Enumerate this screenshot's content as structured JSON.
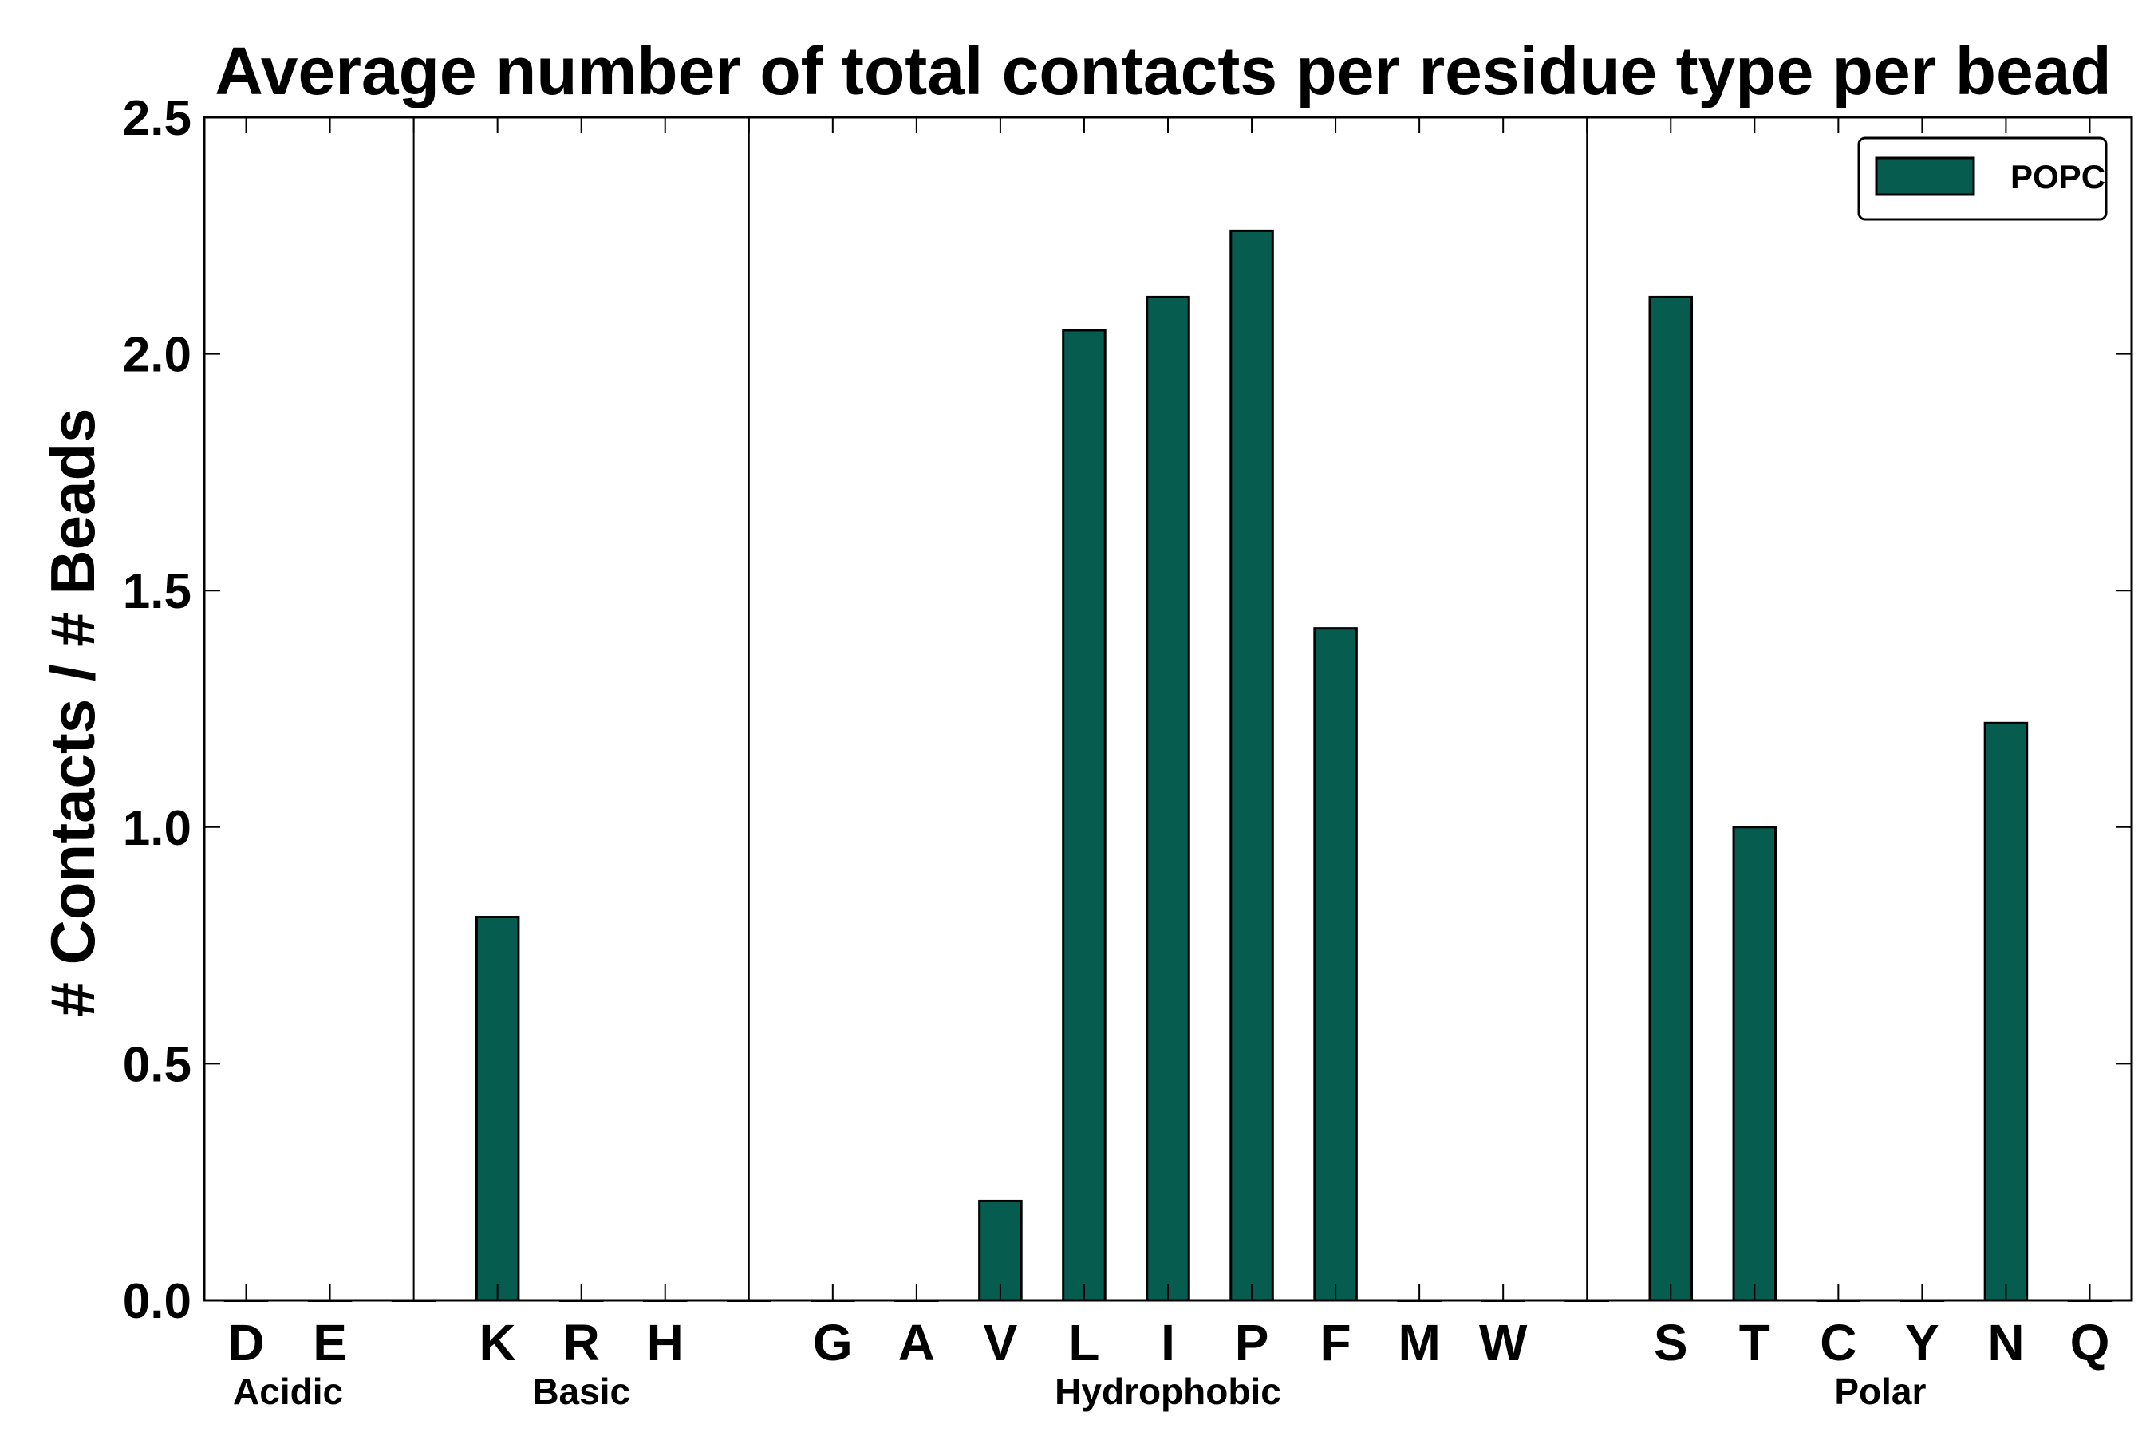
{
  "chart_data": {
    "type": "bar",
    "title": "Average number of total contacts per residue type per bead",
    "ylabel": "# Contacts / # Beads",
    "xlabel": "",
    "ylim": [
      0,
      2.5
    ],
    "yticks": [
      "0.0",
      "0.5",
      "1.0",
      "1.5",
      "2.0",
      "2.5"
    ],
    "grid": false,
    "legend_position": "top-right",
    "categories": [
      "D",
      "E",
      "",
      "K",
      "R",
      "H",
      "",
      "G",
      "A",
      "V",
      "L",
      "I",
      "P",
      "F",
      "M",
      "W",
      "",
      "S",
      "T",
      "C",
      "Y",
      "N",
      "Q"
    ],
    "series": [
      {
        "name": "POPC",
        "color": "#065c4e",
        "values": [
          0,
          0,
          0,
          0.81,
          0,
          0,
          0,
          0,
          0,
          0.21,
          2.05,
          2.12,
          2.26,
          1.42,
          0,
          0,
          0,
          2.12,
          1.0,
          0,
          0,
          1.22,
          0
        ]
      }
    ],
    "groups": [
      {
        "label": "Acidic",
        "start": 0,
        "end": 1
      },
      {
        "label": "Basic",
        "start": 3,
        "end": 5
      },
      {
        "label": "Hydrophobic",
        "start": 7,
        "end": 15
      },
      {
        "label": "Polar",
        "start": 17,
        "end": 22
      }
    ],
    "separators_after": [
      2,
      6,
      16
    ]
  }
}
